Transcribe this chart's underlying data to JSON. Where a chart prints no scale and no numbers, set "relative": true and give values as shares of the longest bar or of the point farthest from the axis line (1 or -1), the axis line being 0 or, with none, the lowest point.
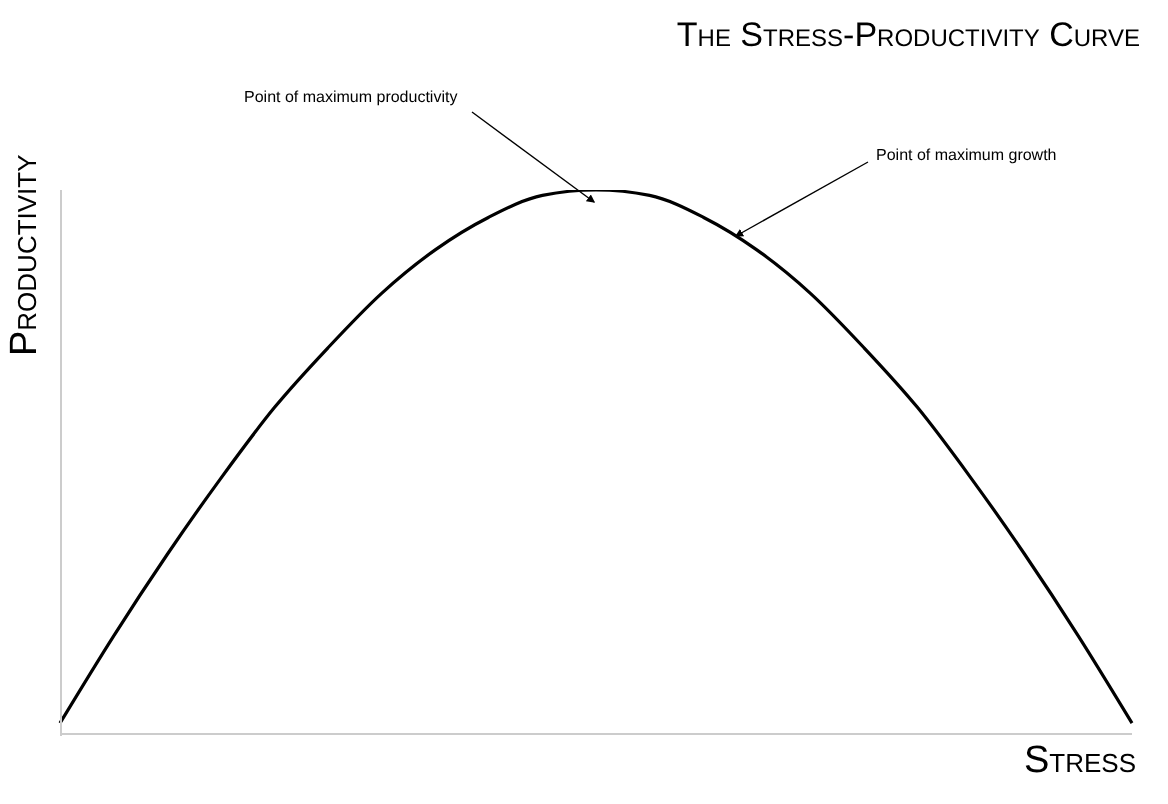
{
  "chart_data": {
    "type": "line",
    "title": "The Stress-Productivity Curve",
    "xlabel": "Stress",
    "ylabel": "Productivity",
    "relative": true,
    "categories": [
      null,
      null,
      null,
      null,
      null,
      null,
      null,
      null,
      null,
      null,
      null,
      null,
      null,
      null,
      null,
      null,
      null,
      null,
      null,
      null,
      null
    ],
    "series": [
      {
        "color": "#000000",
        "values": [
          0.02,
          0.18,
          0.33,
          0.47,
          0.6,
          0.71,
          0.81,
          0.89,
          0.95,
          0.99,
          1,
          0.99,
          0.95,
          0.89,
          0.81,
          0.71,
          0.6,
          0.47,
          0.33,
          0.18,
          0.02
        ]
      }
    ],
    "annotations": [
      "Point of maximum productivity",
      "Point of maximum growth"
    ],
    "grid": false,
    "legend": false,
    "marker": "none",
    "line_style": "solid"
  }
}
